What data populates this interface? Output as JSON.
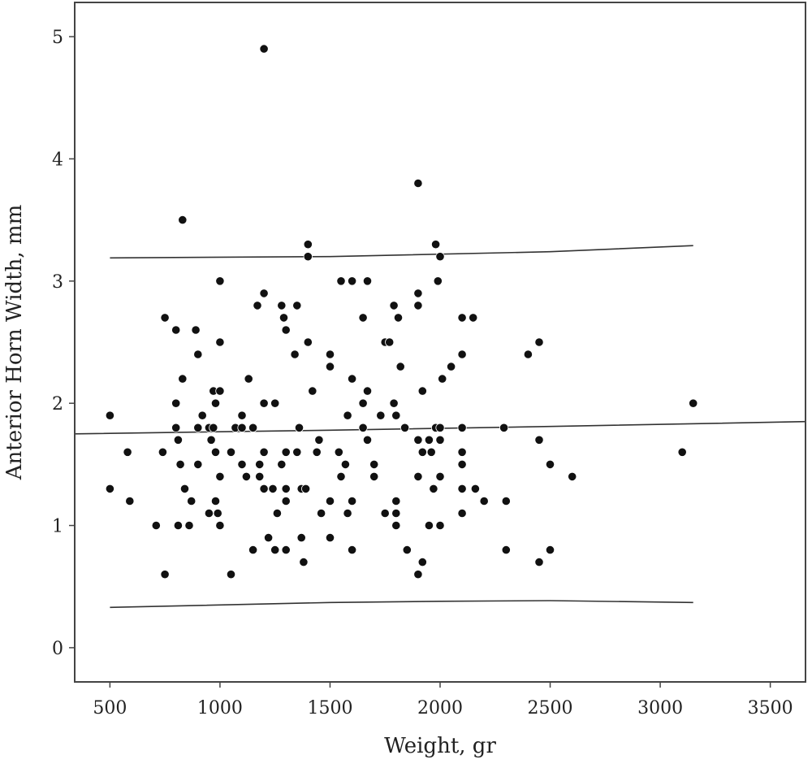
{
  "chart_data": {
    "type": "scatter",
    "title": "",
    "xlabel": "Weight, gr",
    "ylabel": "Anterior Horn Width, mm",
    "xlim": [
      340,
      3660
    ],
    "ylim": [
      -0.28,
      5.28
    ],
    "xticks": [
      500,
      1000,
      1500,
      2000,
      2500,
      3000,
      3500
    ],
    "yticks": [
      0,
      1,
      2,
      3,
      4,
      5
    ],
    "grid": false,
    "legend": "none",
    "point_color": "#111111",
    "series": [
      {
        "values": [
          [
            500,
            1.9
          ],
          [
            500,
            1.3
          ],
          [
            580,
            1.6
          ],
          [
            590,
            1.2
          ],
          [
            710,
            1.0
          ],
          [
            740,
            1.6
          ],
          [
            750,
            2.7
          ],
          [
            750,
            0.6
          ],
          [
            800,
            2.6
          ],
          [
            800,
            2.0
          ],
          [
            800,
            1.8
          ],
          [
            810,
            1.7
          ],
          [
            810,
            1.0
          ],
          [
            820,
            1.5
          ],
          [
            830,
            3.5
          ],
          [
            830,
            2.2
          ],
          [
            840,
            1.3
          ],
          [
            860,
            1.0
          ],
          [
            870,
            1.2
          ],
          [
            890,
            2.6
          ],
          [
            900,
            2.4
          ],
          [
            900,
            1.8
          ],
          [
            900,
            1.5
          ],
          [
            920,
            1.9
          ],
          [
            950,
            1.8
          ],
          [
            950,
            1.1
          ],
          [
            960,
            1.7
          ],
          [
            970,
            2.1
          ],
          [
            970,
            1.8
          ],
          [
            980,
            2.0
          ],
          [
            980,
            1.6
          ],
          [
            980,
            1.2
          ],
          [
            990,
            1.1
          ],
          [
            1000,
            3.0
          ],
          [
            1000,
            2.5
          ],
          [
            1000,
            2.1
          ],
          [
            1000,
            1.4
          ],
          [
            1000,
            1.0
          ],
          [
            1050,
            1.6
          ],
          [
            1050,
            0.6
          ],
          [
            1070,
            1.8
          ],
          [
            1100,
            1.9
          ],
          [
            1100,
            1.8
          ],
          [
            1100,
            1.5
          ],
          [
            1120,
            1.4
          ],
          [
            1130,
            2.2
          ],
          [
            1150,
            1.8
          ],
          [
            1150,
            0.8
          ],
          [
            1170,
            2.8
          ],
          [
            1180,
            1.5
          ],
          [
            1180,
            1.4
          ],
          [
            1200,
            4.9
          ],
          [
            1200,
            2.9
          ],
          [
            1200,
            2.0
          ],
          [
            1200,
            1.6
          ],
          [
            1200,
            1.3
          ],
          [
            1220,
            0.9
          ],
          [
            1240,
            1.3
          ],
          [
            1250,
            2.0
          ],
          [
            1250,
            0.8
          ],
          [
            1260,
            1.1
          ],
          [
            1280,
            2.8
          ],
          [
            1280,
            1.5
          ],
          [
            1290,
            2.7
          ],
          [
            1300,
            2.6
          ],
          [
            1300,
            1.6
          ],
          [
            1300,
            1.3
          ],
          [
            1300,
            1.2
          ],
          [
            1300,
            0.8
          ],
          [
            1340,
            2.4
          ],
          [
            1350,
            2.8
          ],
          [
            1350,
            1.6
          ],
          [
            1360,
            1.8
          ],
          [
            1370,
            1.3
          ],
          [
            1370,
            0.9
          ],
          [
            1380,
            0.7
          ],
          [
            1390,
            1.3
          ],
          [
            1400,
            3.3
          ],
          [
            1400,
            3.2
          ],
          [
            1400,
            2.5
          ],
          [
            1420,
            2.1
          ],
          [
            1440,
            1.6
          ],
          [
            1450,
            1.7
          ],
          [
            1460,
            1.1
          ],
          [
            1500,
            2.4
          ],
          [
            1500,
            2.3
          ],
          [
            1500,
            1.2
          ],
          [
            1500,
            0.9
          ],
          [
            1540,
            1.6
          ],
          [
            1550,
            3.0
          ],
          [
            1550,
            1.4
          ],
          [
            1570,
            1.5
          ],
          [
            1580,
            1.9
          ],
          [
            1580,
            1.1
          ],
          [
            1600,
            3.0
          ],
          [
            1600,
            2.2
          ],
          [
            1600,
            1.2
          ],
          [
            1600,
            0.8
          ],
          [
            1650,
            2.7
          ],
          [
            1650,
            2.0
          ],
          [
            1650,
            1.8
          ],
          [
            1670,
            3.0
          ],
          [
            1670,
            2.1
          ],
          [
            1670,
            1.7
          ],
          [
            1700,
            1.5
          ],
          [
            1700,
            1.4
          ],
          [
            1730,
            1.9
          ],
          [
            1750,
            2.5
          ],
          [
            1750,
            1.1
          ],
          [
            1770,
            2.5
          ],
          [
            1790,
            2.8
          ],
          [
            1790,
            2.0
          ],
          [
            1800,
            1.9
          ],
          [
            1800,
            1.2
          ],
          [
            1800,
            1.1
          ],
          [
            1800,
            1.0
          ],
          [
            1810,
            2.7
          ],
          [
            1820,
            2.3
          ],
          [
            1840,
            1.8
          ],
          [
            1850,
            0.8
          ],
          [
            1900,
            3.8
          ],
          [
            1900,
            2.9
          ],
          [
            1900,
            2.8
          ],
          [
            1900,
            1.7
          ],
          [
            1900,
            1.4
          ],
          [
            1900,
            0.6
          ],
          [
            1920,
            2.1
          ],
          [
            1920,
            1.6
          ],
          [
            1920,
            0.7
          ],
          [
            1950,
            1.7
          ],
          [
            1950,
            1.0
          ],
          [
            1960,
            1.6
          ],
          [
            1970,
            1.3
          ],
          [
            1980,
            3.3
          ],
          [
            1980,
            1.8
          ],
          [
            1990,
            3.0
          ],
          [
            2000,
            3.2
          ],
          [
            2000,
            1.8
          ],
          [
            2000,
            1.7
          ],
          [
            2000,
            1.4
          ],
          [
            2000,
            1.0
          ],
          [
            2010,
            2.2
          ],
          [
            2050,
            2.3
          ],
          [
            2100,
            2.7
          ],
          [
            2100,
            2.4
          ],
          [
            2100,
            1.8
          ],
          [
            2100,
            1.6
          ],
          [
            2100,
            1.5
          ],
          [
            2100,
            1.3
          ],
          [
            2100,
            1.1
          ],
          [
            2150,
            2.7
          ],
          [
            2160,
            1.3
          ],
          [
            2200,
            1.2
          ],
          [
            2290,
            1.8
          ],
          [
            2300,
            1.2
          ],
          [
            2300,
            0.8
          ],
          [
            2400,
            2.4
          ],
          [
            2450,
            2.5
          ],
          [
            2450,
            1.7
          ],
          [
            2450,
            0.7
          ],
          [
            2500,
            1.5
          ],
          [
            2500,
            0.8
          ],
          [
            2600,
            1.4
          ],
          [
            3100,
            1.6
          ],
          [
            3150,
            2.0
          ]
        ]
      }
    ],
    "lines": [
      {
        "x": [
          500,
          1500,
          2500,
          3150
        ],
        "y": [
          3.19,
          3.2,
          3.24,
          3.29
        ]
      },
      {
        "x": [
          340,
          1500,
          2500,
          3660
        ],
        "y": [
          1.75,
          1.78,
          1.81,
          1.85
        ]
      },
      {
        "x": [
          500,
          1500,
          2000,
          2500,
          3150
        ],
        "y": [
          0.33,
          0.37,
          0.38,
          0.385,
          0.37
        ]
      }
    ]
  }
}
